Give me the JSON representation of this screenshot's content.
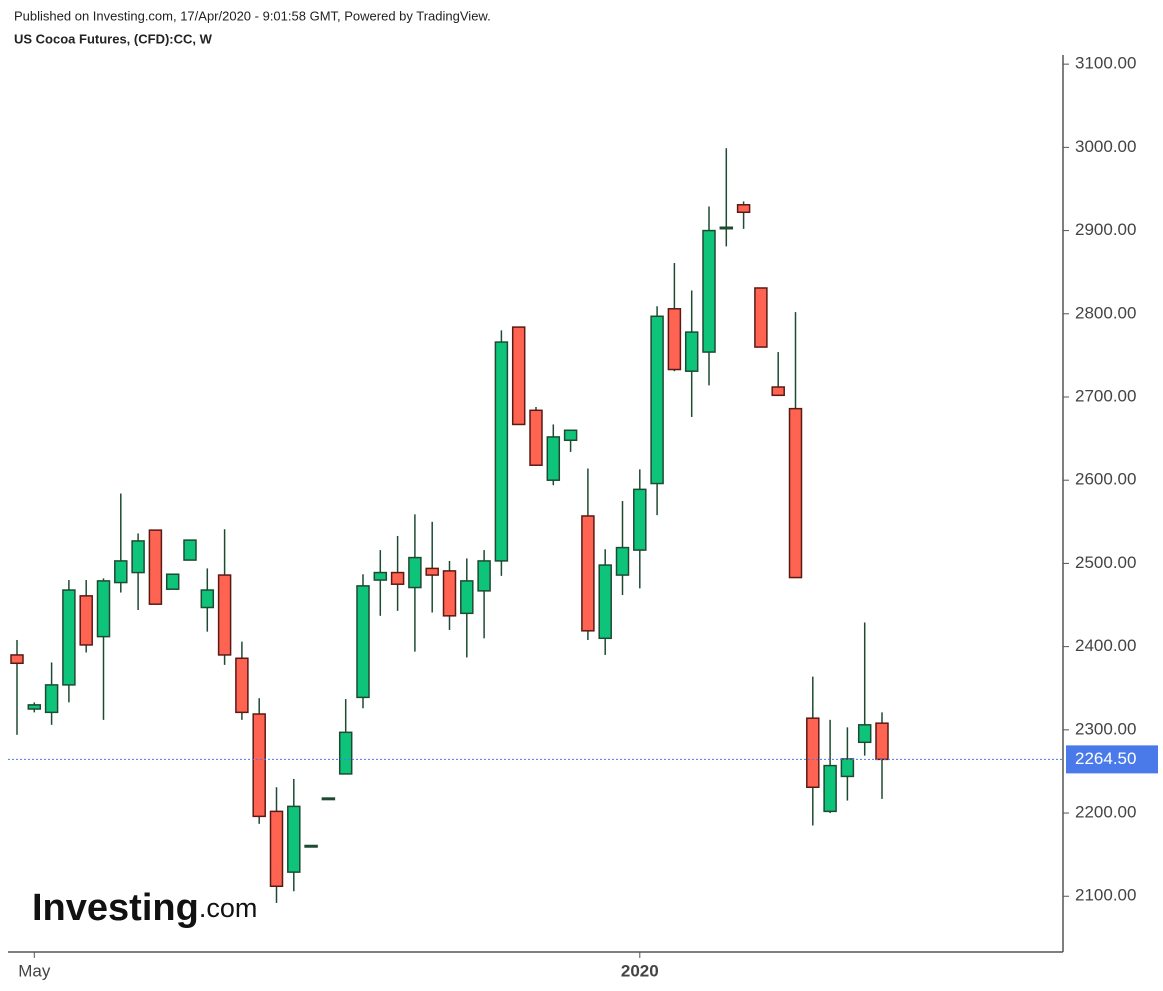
{
  "published": "Published on Investing.com, 17/Apr/2020 - 9:01:58 GMT, Powered by TradingView.",
  "logo": {
    "main": "Investing",
    "suffix": ".com"
  },
  "chart_data": {
    "type": "candlestick",
    "title": "US Cocoa Futures, (CFD):CC, W",
    "categories": [
      null,
      "May",
      null,
      null,
      null,
      null,
      null,
      null,
      null,
      null,
      null,
      null,
      null,
      null,
      null,
      null,
      null,
      null,
      null,
      null,
      null,
      null,
      null,
      null,
      null,
      null,
      null,
      null,
      null,
      null,
      null,
      null,
      null,
      null,
      null,
      null,
      "2020",
      null,
      null,
      null,
      null,
      null,
      null,
      null,
      null,
      null,
      null,
      null,
      null,
      null,
      null
    ],
    "open": [
      2390,
      2325,
      2321,
      2354,
      2461,
      2412,
      2477,
      2489,
      2540,
      2469,
      2504,
      2447,
      2486,
      2386,
      2319,
      2202,
      2129,
      2161,
      2218,
      2247,
      2339,
      2480,
      2489,
      2471,
      2494,
      2491,
      2440,
      2467,
      2503,
      2784,
      2684,
      2600,
      2648,
      2557,
      2410,
      2486,
      2516,
      2596,
      2806,
      2731,
      2754,
      2903,
      2931,
      2831,
      2712,
      2686,
      2314,
      2202,
      2244,
      2285,
      2308
    ],
    "high": [
      2408,
      2333,
      2381,
      2480,
      2480,
      2482,
      2584,
      2536,
      2540,
      2487,
      2528,
      2494,
      2541,
      2406,
      2338,
      2231,
      2241,
      2161,
      2218,
      2337,
      2487,
      2516,
      2533,
      2559,
      2550,
      2503,
      2506,
      2516,
      2780,
      2784,
      2688,
      2667,
      2660,
      2614,
      2517,
      2575,
      2613,
      2809,
      2861,
      2828,
      2929,
      2999,
      2935,
      2831,
      2754,
      2802,
      2364,
      2312,
      2303,
      2429,
      2321
    ],
    "low": [
      2294,
      2321,
      2306,
      2333,
      2393,
      2312,
      2465,
      2444,
      2451,
      2469,
      2504,
      2418,
      2378,
      2312,
      2187,
      2092,
      2106,
      2161,
      2218,
      2247,
      2326,
      2437,
      2443,
      2394,
      2441,
      2420,
      2387,
      2410,
      2485,
      2667,
      2618,
      2594,
      2634,
      2408,
      2390,
      2462,
      2470,
      2558,
      2731,
      2676,
      2714,
      2881,
      2902,
      2760,
      2702,
      2483,
      2185,
      2200,
      2215,
      2269,
      2217
    ],
    "close": [
      2380,
      2330,
      2354,
      2468,
      2402,
      2479,
      2503,
      2527,
      2451,
      2487,
      2528,
      2468,
      2390,
      2321,
      2196,
      2112,
      2208,
      2161,
      2218,
      2297,
      2473,
      2489,
      2475,
      2507,
      2486,
      2437,
      2479,
      2503,
      2766,
      2667,
      2618,
      2652,
      2660,
      2419,
      2498,
      2519,
      2589,
      2797,
      2733,
      2778,
      2900,
      2904,
      2922,
      2760,
      2702,
      2483,
      2231,
      2257,
      2265,
      2306,
      2264.5
    ],
    "up_color": "#0ec47a",
    "down_color": "#ff6352",
    "ylim": [
      2033,
      3111
    ],
    "yticks": [
      {
        "value": 2100,
        "label": "2100.00"
      },
      {
        "value": 2200,
        "label": "2200.00"
      },
      {
        "value": 2300,
        "label": "2300.00"
      },
      {
        "value": 2400,
        "label": "2400.00"
      },
      {
        "value": 2500,
        "label": "2500.00"
      },
      {
        "value": 2600,
        "label": "2600.00"
      },
      {
        "value": 2700,
        "label": "2700.00"
      },
      {
        "value": 2800,
        "label": "2800.00"
      },
      {
        "value": 2900,
        "label": "2900.00"
      },
      {
        "value": 3000,
        "label": "3000.00"
      },
      {
        "value": 3100,
        "label": "3100.00"
      }
    ],
    "last_price": {
      "value": 2264.5,
      "label": "2264.50",
      "color": "#4a7aea"
    }
  }
}
